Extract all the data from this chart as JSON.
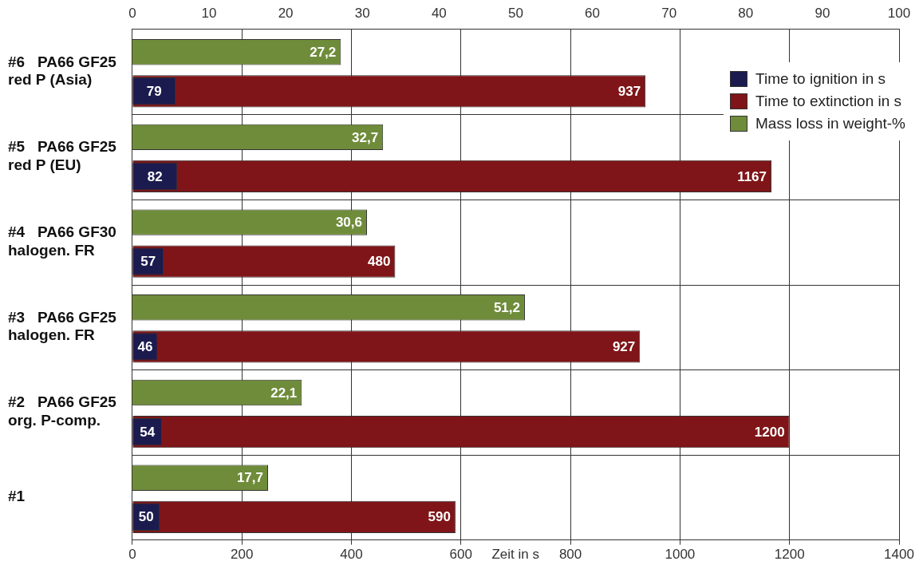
{
  "chart_data": {
    "type": "bar",
    "orientation": "horizontal",
    "categories": [
      "#6   PA66 GF25\nred P (Asia)",
      "#5   PA66 GF25\nred P (EU)",
      "#4   PA66 GF30\nhalogen. FR",
      "#3   PA66 GF25\nhalogen. FR",
      "#2   PA66 GF25\norg. P-comp.",
      "#1"
    ],
    "series": [
      {
        "name": "Mass loss in weight-%",
        "color": "#6f8c3a",
        "axis": "x2",
        "values": [
          27.2,
          32.7,
          30.6,
          51.2,
          22.1,
          17.7
        ],
        "value_labels": [
          "27,2",
          "32,7",
          "30,6",
          "51,2",
          "22,1",
          "17,7"
        ]
      },
      {
        "name": "Time to ignition in s",
        "color": "#1c1b4f",
        "values": [
          79,
          82,
          57,
          46,
          54,
          50
        ],
        "value_labels": [
          "79",
          "82",
          "57",
          "46",
          "54",
          "50"
        ]
      },
      {
        "name": "Time to extinction in s",
        "color": "#7f1518",
        "values": [
          937,
          1167,
          480,
          927,
          1200,
          590
        ],
        "value_labels": [
          "937",
          "1167",
          "480",
          "927",
          "1200",
          "590"
        ]
      }
    ],
    "xlabel": "Zeit in s",
    "xlim": [
      0,
      1400
    ],
    "xticks": [
      0,
      200,
      400,
      600,
      800,
      1000,
      1200,
      1400
    ],
    "x2lim": [
      0,
      100
    ],
    "x2ticks": [
      0,
      10,
      20,
      30,
      40,
      50,
      60,
      70,
      80,
      90,
      100
    ],
    "grid": true,
    "legend": "top right"
  }
}
